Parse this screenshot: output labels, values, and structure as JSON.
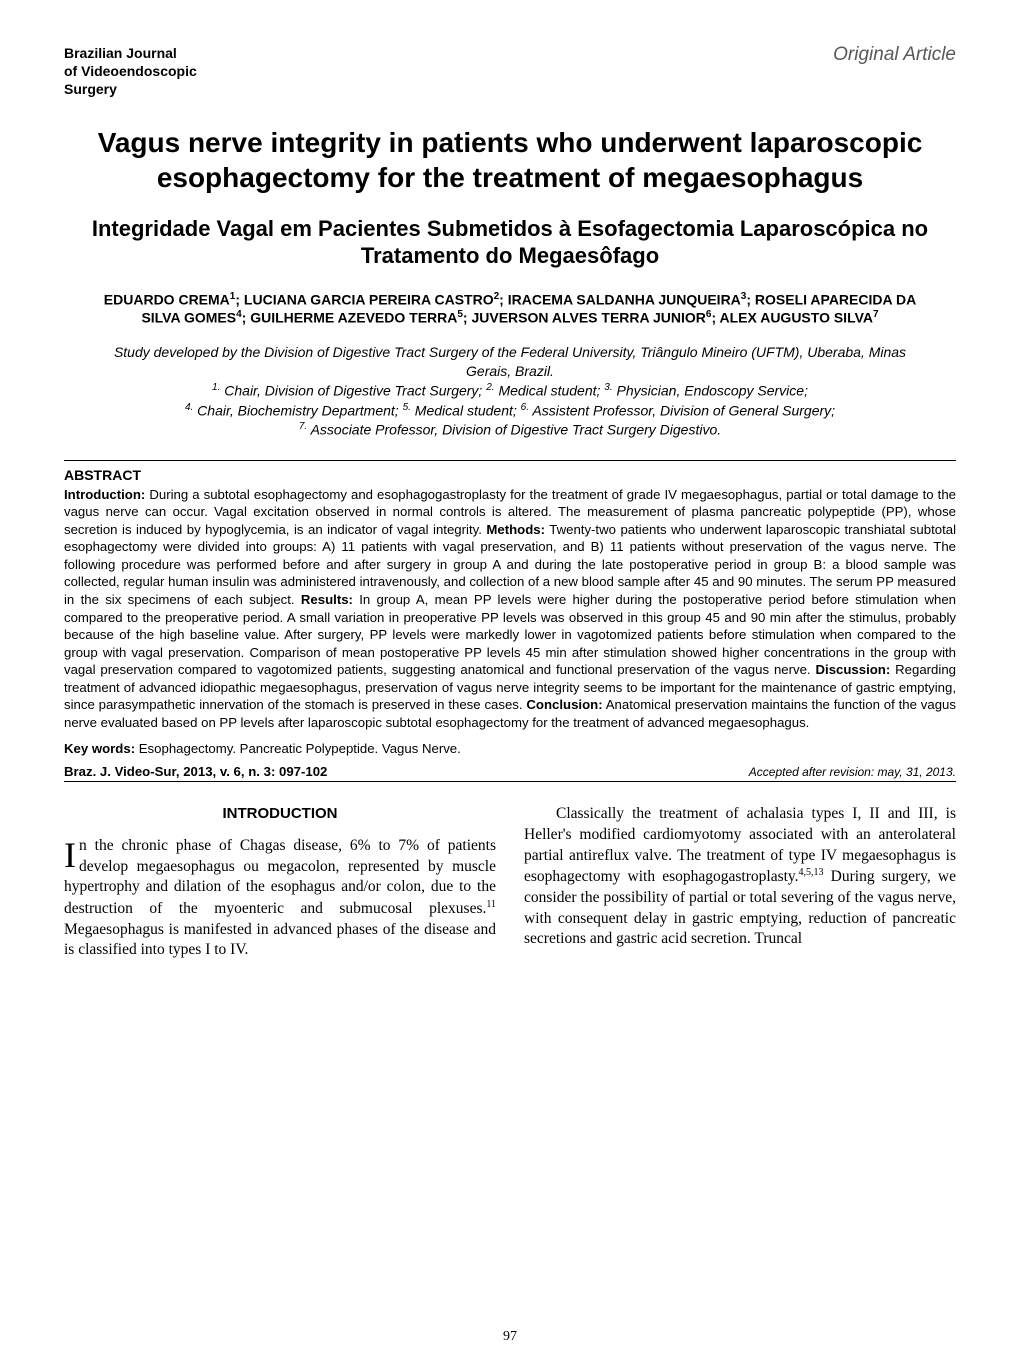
{
  "header": {
    "journal_line1": "Brazilian Journal",
    "journal_line2": "of Videoendoscopic",
    "journal_line3": "Surgery",
    "article_type": "Original Article"
  },
  "titles": {
    "en": "Vagus nerve integrity in patients who underwent laparoscopic esophagectomy for the treatment of megaesophagus",
    "pt": "Integridade Vagal em Pacientes Submetidos à Esofagectomia Laparoscópica no Tratamento do Megaesôfago"
  },
  "authors": {
    "a1_name": "EDUARDO CREMA",
    "a1_sup": "1",
    "sep12": "; ",
    "a2_name": "LUCIANA GARCIA PEREIRA CASTRO",
    "a2_sup": "2",
    "sep23": "; ",
    "a3_name": "IRACEMA SALDANHA JUNQUEIRA",
    "a3_sup": "3",
    "sep34": "; ",
    "a4_name": "ROSELI APARECIDA DA SILVA GOMES",
    "a4_sup": "4",
    "sep45": "; ",
    "a5_name": "GUILHERME AZEVEDO TERRA",
    "a5_sup": "5",
    "sep56": "; ",
    "a6_name": "JUVERSON ALVES TERRA JUNIOR",
    "a6_sup": "6",
    "sep67": "; ",
    "a7_name": "ALEX AUGUSTO SILVA",
    "a7_sup": "7"
  },
  "affiliations": {
    "study_line": "Study developed by the Division of Digestive Tract Surgery of the Federal University, Triângulo Mineiro (UFTM), Uberaba, Minas Gerais, Brazil.",
    "s1": "1.",
    "t1": " Chair, Division of Digestive Tract Surgery; ",
    "s2": "2.",
    "t2": " Medical student; ",
    "s3": "3.",
    "t3": " Physician, Endoscopy Service; ",
    "s4": "4.",
    "t4": " Chair, Biochemistry Department; ",
    "s5": "5.",
    "t5": " Medical student; ",
    "s6": "6.",
    "t6": " Assistent Professor, Division of General Surgery; ",
    "s7": "7.",
    "t7": " Associate Professor, Division of Digestive Tract Surgery Digestivo."
  },
  "abstract": {
    "heading": "ABSTRACT",
    "lbl_intro": "Introduction:",
    "txt_intro": " During a subtotal esophagectomy and esophagogastroplasty for the treatment of grade IV megaesophagus, partial or total damage to the vagus nerve can occur.  Vagal excitation observed in normal controls is altered. The measurement of plasma pancreatic polypeptide (PP), whose secretion is induced by hypoglycemia, is an indicator of vagal integrity. ",
    "lbl_methods": "Methods:",
    "txt_methods": " Twenty-two patients who underwent laparoscopic transhiatal subtotal esophagectomy were divided into groups: A) 11 patients with vagal preservation, and B) 11 patients without preservation of the vagus nerve. The following procedure was performed before and after surgery in group A and during the late postoperative period in group B: a blood sample was collected, regular human insulin was administered intravenously, and collection of a new blood sample after 45 and 90 minutes. The serum PP measured in the six specimens of each subject. ",
    "lbl_results": "Results:",
    "txt_results": " In group A, mean PP levels were higher during the postoperative period before stimulation when compared to the preoperative period. A small variation in preoperative PP levels was observed in this group 45 and 90 min after the stimulus, probably because of the high baseline value. After surgery, PP levels were markedly lower in vagotomized patients before stimulation when compared to the group with vagal preservation. Comparison of mean postoperative PP levels 45 min after stimulation showed higher concentrations in the group with vagal preservation compared to vagotomized patients, suggesting anatomical and functional preservation of the vagus nerve. ",
    "lbl_discussion": "Discussion:",
    "txt_discussion": " Regarding treatment of advanced idiopathic megaesophagus, preservation of vagus nerve integrity seems to be important for the maintenance of gastric emptying, since parasympathetic innervation of the stomach is preserved in these cases. ",
    "lbl_conclusion": "Conclusion:",
    "txt_conclusion": " Anatomical preservation maintains the function of the vagus nerve evaluated based on PP levels after laparoscopic subtotal esophagectomy for the treatment of advanced megaesophagus."
  },
  "keywords": {
    "label": "Key words:",
    "text": " Esophagectomy. Pancreatic Polypeptide. Vagus Nerve."
  },
  "citation_row": {
    "citation": "Braz. J. Video-Sur, 2013, v. 6, n. 3: 097-102",
    "accepted": "Accepted after revision: may, 31, 2013."
  },
  "body": {
    "left": {
      "section_heading": "INTRODUCTION",
      "dropcap": "I",
      "p1_after_drop": "n the chronic phase of Chagas disease, 6% to 7% of patients develop megaesophagus ou megacolon, represented by muscle hypertrophy and dilation of the esophagus and/or colon, due to the destruction of the myoenteric and submucosal plexuses.",
      "p1_sup": "11",
      "p1_tail": " Megaesophagus is manifested in advanced phases of the disease and is classified into types I to IV."
    },
    "right": {
      "p1_a": "Classically the treatment of achalasia types I, II and III, is Heller's modified cardiomyotomy associated with an anterolateral partial antireflux valve. The treatment of type IV megaesophagus is esophagectomy with esophagogastroplasty.",
      "p1_sup": "4,5,13",
      "p1_b": " During surgery, we consider the possibility of partial or total severing of the vagus nerve, with consequent delay in gastric emptying, reduction of pancreatic secretions and gastric acid secretion. Truncal"
    }
  },
  "page_number": "97",
  "colors": {
    "text": "#000000",
    "muted": "#595959",
    "rule": "#000000",
    "background": "#ffffff"
  },
  "typography": {
    "sans": "Arial, Helvetica, sans-serif",
    "serif": "\"Times New Roman\", Times, serif",
    "title_en_pt": 28,
    "title_pt_pt": 22,
    "authors_pt": 14,
    "affiliations_pt": 14,
    "abstract_pt": 13.2,
    "body_pt": 15.5
  }
}
